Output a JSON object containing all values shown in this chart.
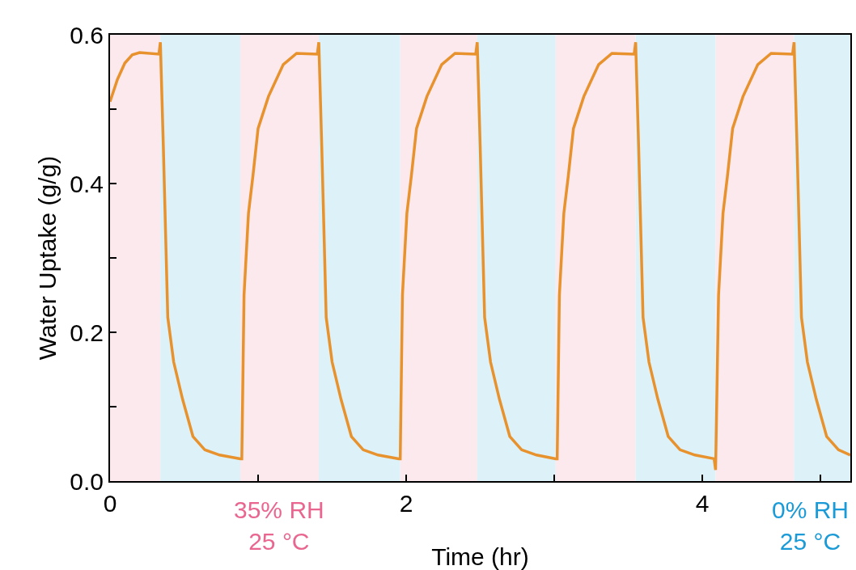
{
  "chart_data": {
    "type": "line",
    "xlabel": "Time (hr)",
    "ylabel": "Water Uptake (g/g)",
    "xlim": [
      0,
      5
    ],
    "ylim": [
      0,
      0.6
    ],
    "xticks": [
      0,
      {
        "value": 1,
        "label": null
      },
      2,
      {
        "value": 3,
        "label": null
      },
      4,
      {
        "value": 4.8,
        "label": null
      }
    ],
    "yticks": [
      {
        "value": 0,
        "label": "0.0"
      },
      {
        "value": 0.1,
        "label": null
      },
      {
        "value": 0.2,
        "label": "0.2"
      },
      {
        "value": 0.3,
        "label": null
      },
      {
        "value": 0.4,
        "label": "0.4"
      },
      {
        "value": 0.5,
        "label": null
      },
      {
        "value": 0.6,
        "label": "0.6"
      }
    ],
    "grid": false,
    "marker": "none",
    "line_style": "solid",
    "series": [
      {
        "color": "#e8922e",
        "x": [
          0,
          0.05,
          0.1,
          0.15,
          0.2,
          0.33,
          0.34,
          0.36,
          0.39,
          0.43,
          0.49,
          0.56,
          0.64,
          0.74,
          0.88,
          0.89,
          0.905,
          0.935,
          0.965,
          1.0,
          1.07,
          1.17,
          1.26,
          1.4,
          1.41,
          1.43,
          1.46,
          1.5,
          1.56,
          1.63,
          1.71,
          1.81,
          1.95,
          1.96,
          1.975,
          2.005,
          2.035,
          2.07,
          2.14,
          2.24,
          2.33,
          2.47,
          2.48,
          2.5,
          2.53,
          2.57,
          2.63,
          2.7,
          2.78,
          2.88,
          3.01,
          3.02,
          3.035,
          3.065,
          3.095,
          3.13,
          3.2,
          3.3,
          3.39,
          3.54,
          3.55,
          3.57,
          3.6,
          3.64,
          3.7,
          3.77,
          3.85,
          3.95,
          4.08,
          4.09,
          4.11,
          4.14,
          4.17,
          4.205,
          4.275,
          4.375,
          4.465,
          4.61,
          4.62,
          4.64,
          4.67,
          4.71,
          4.77,
          4.84,
          4.92,
          5.0
        ],
        "values": [
          0.51,
          0.54,
          0.562,
          0.573,
          0.576,
          0.574,
          0.59,
          0.45,
          0.22,
          0.16,
          0.11,
          0.06,
          0.042,
          0.035,
          0.03,
          0.03,
          0.25,
          0.36,
          0.41,
          0.474,
          0.517,
          0.56,
          0.575,
          0.574,
          0.59,
          0.45,
          0.22,
          0.16,
          0.11,
          0.06,
          0.042,
          0.035,
          0.03,
          0.03,
          0.25,
          0.36,
          0.41,
          0.474,
          0.517,
          0.56,
          0.575,
          0.574,
          0.59,
          0.45,
          0.22,
          0.16,
          0.11,
          0.06,
          0.042,
          0.035,
          0.03,
          0.03,
          0.25,
          0.36,
          0.41,
          0.474,
          0.517,
          0.56,
          0.575,
          0.574,
          0.59,
          0.45,
          0.22,
          0.16,
          0.11,
          0.06,
          0.042,
          0.035,
          0.03,
          0.015,
          0.25,
          0.36,
          0.41,
          0.474,
          0.517,
          0.56,
          0.575,
          0.574,
          0.59,
          0.45,
          0.22,
          0.16,
          0.11,
          0.06,
          0.042,
          0.035
        ]
      }
    ],
    "bands": [
      {
        "axis": "x",
        "from": 0,
        "to": 0.34,
        "color": "#fbe9ee"
      },
      {
        "axis": "x",
        "from": 0.34,
        "to": 0.88,
        "color": "#ddf1f8"
      },
      {
        "axis": "x",
        "from": 0.88,
        "to": 1.41,
        "color": "#fbe9ee"
      },
      {
        "axis": "x",
        "from": 1.41,
        "to": 1.96,
        "color": "#ddf1f8"
      },
      {
        "axis": "x",
        "from": 1.96,
        "to": 2.48,
        "color": "#fbe9ee"
      },
      {
        "axis": "x",
        "from": 2.48,
        "to": 3.01,
        "color": "#ddf1f8"
      },
      {
        "axis": "x",
        "from": 3.01,
        "to": 3.55,
        "color": "#fbe9ee"
      },
      {
        "axis": "x",
        "from": 3.55,
        "to": 4.09,
        "color": "#ddf1f8"
      },
      {
        "axis": "x",
        "from": 4.09,
        "to": 4.62,
        "color": "#fbe9ee"
      },
      {
        "axis": "x",
        "from": 4.62,
        "to": 5,
        "color": "#ddf1f8"
      }
    ],
    "annotations": [
      "35% RH\n25 °C",
      "0% RH\n25 °C"
    ]
  }
}
